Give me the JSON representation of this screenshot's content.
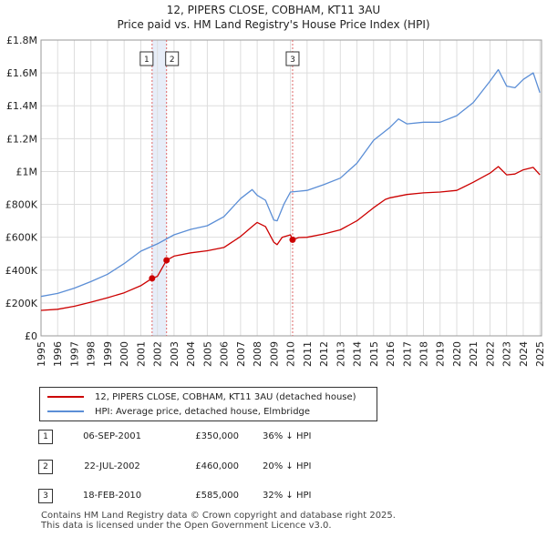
{
  "header": {
    "title": "12, PIPERS CLOSE, COBHAM, KT11 3AU",
    "subtitle": "Price paid vs. HM Land Registry's House Price Index (HPI)"
  },
  "chart_data": {
    "type": "line",
    "title": "12, PIPERS CLOSE, COBHAM, KT11 3AU",
    "subtitle": "Price paid vs. HM Land Registry's House Price Index (HPI)",
    "xlabel": "",
    "ylabel": "",
    "xlim": [
      1995,
      2025.1
    ],
    "ylim": [
      0,
      1800000
    ],
    "y_ticks": [
      0,
      200000,
      400000,
      600000,
      800000,
      1000000,
      1200000,
      1400000,
      1600000,
      1800000
    ],
    "y_tick_labels": [
      "£0",
      "£200K",
      "£400K",
      "£600K",
      "£800K",
      "£1M",
      "£1.2M",
      "£1.4M",
      "£1.6M",
      "£1.8M"
    ],
    "x_ticks": [
      1995,
      1996,
      1997,
      1998,
      1999,
      2000,
      2001,
      2002,
      2003,
      2004,
      2005,
      2006,
      2007,
      2008,
      2009,
      2010,
      2011,
      2012,
      2013,
      2014,
      2015,
      2016,
      2017,
      2018,
      2019,
      2020,
      2021,
      2022,
      2023,
      2024,
      2025
    ],
    "grid": true,
    "legend_position": "below",
    "series": [
      {
        "name": "12, PIPERS CLOSE, COBHAM, KT11 3AU (detached house)",
        "color": "#cc0000",
        "x": [
          1995,
          1996,
          1997,
          1998,
          1999,
          2000,
          2001,
          2001.68,
          2002,
          2002.55,
          2003,
          2004,
          2005,
          2006,
          2007,
          2007.7,
          2008,
          2008.5,
          2009,
          2009.2,
          2009.5,
          2010,
          2010.13,
          2010.5,
          2011,
          2012,
          2013,
          2014,
          2015,
          2015.7,
          2016,
          2017,
          2018,
          2019,
          2020,
          2021,
          2022,
          2022.5,
          2023,
          2023.5,
          2024,
          2024.6,
          2025
        ],
        "y": [
          155000,
          162000,
          180000,
          205000,
          232000,
          262000,
          305000,
          350000,
          362000,
          460000,
          485000,
          505000,
          518000,
          538000,
          605000,
          665000,
          690000,
          665000,
          570000,
          555000,
          600000,
          615000,
          585000,
          598000,
          600000,
          620000,
          645000,
          700000,
          780000,
          830000,
          840000,
          860000,
          870000,
          875000,
          885000,
          935000,
          990000,
          1030000,
          980000,
          985000,
          1010000,
          1025000,
          980000
        ]
      },
      {
        "name": "HPI: Average price, detached house, Elmbridge",
        "color": "#5b8ed6",
        "x": [
          1995,
          1996,
          1997,
          1998,
          1999,
          2000,
          2001,
          2002,
          2003,
          2004,
          2005,
          2006,
          2007,
          2007.7,
          2008,
          2008.5,
          2009,
          2009.2,
          2009.6,
          2010,
          2010.5,
          2011,
          2012,
          2013,
          2014,
          2015,
          2016,
          2016.5,
          2017,
          2018,
          2019,
          2020,
          2021,
          2022,
          2022.5,
          2023,
          2023.5,
          2024,
          2024.6,
          2025
        ],
        "y": [
          240000,
          258000,
          290000,
          330000,
          375000,
          440000,
          515000,
          560000,
          615000,
          648000,
          670000,
          725000,
          835000,
          890000,
          855000,
          825000,
          705000,
          700000,
          800000,
          875000,
          880000,
          885000,
          920000,
          960000,
          1050000,
          1190000,
          1270000,
          1320000,
          1290000,
          1300000,
          1300000,
          1340000,
          1420000,
          1550000,
          1620000,
          1520000,
          1510000,
          1560000,
          1600000,
          1480000
        ]
      }
    ],
    "transactions": [
      {
        "label": "1",
        "x": 2001.68,
        "price": 350000
      },
      {
        "label": "2",
        "x": 2002.55,
        "price": 460000
      },
      {
        "label": "3",
        "x": 2010.13,
        "price": 585000
      }
    ]
  },
  "legend": {
    "items": [
      {
        "label": "12, PIPERS CLOSE, COBHAM, KT11 3AU (detached house)",
        "color": "#cc0000"
      },
      {
        "label": "HPI: Average price, detached house, Elmbridge",
        "color": "#5b8ed6"
      }
    ]
  },
  "transactions_table": [
    {
      "num": "1",
      "date": "06-SEP-2001",
      "price": "£350,000",
      "hpi": "36% ↓ HPI"
    },
    {
      "num": "2",
      "date": "22-JUL-2002",
      "price": "£460,000",
      "hpi": "20% ↓ HPI"
    },
    {
      "num": "3",
      "date": "18-FEB-2010",
      "price": "£585,000",
      "hpi": "32% ↓ HPI"
    }
  ],
  "footer": {
    "line1": "Contains HM Land Registry data © Crown copyright and database right 2025.",
    "line2": "This data is licensed under the Open Government Licence v3.0."
  }
}
